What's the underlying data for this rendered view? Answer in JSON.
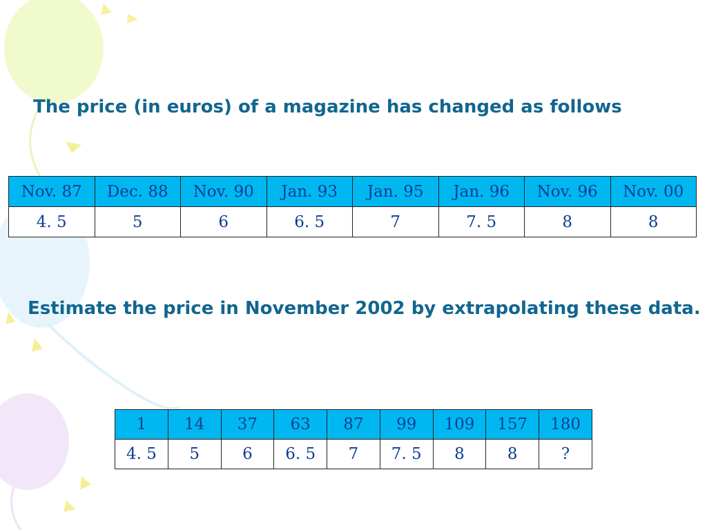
{
  "heading": "The price (in euros) of a magazine has changed as follows",
  "question": "Estimate the price in November 2002 by extrapolating these data.",
  "table_dates": {
    "dates": [
      "Nov.  87",
      "Dec.  88",
      "Nov.  90",
      "Jan.  93",
      "Jan.  95",
      "Jan.  96",
      "Nov.  96",
      "Nov.  00"
    ],
    "prices": [
      "4. 5",
      "5",
      "6",
      "6. 5",
      "7",
      "7. 5",
      "8",
      "8"
    ]
  },
  "table_days": {
    "x": [
      "1",
      "14",
      "37",
      "63",
      "87",
      "99",
      "109",
      "157",
      "180"
    ],
    "prices": [
      "4. 5",
      "5",
      "6",
      "6. 5",
      "7",
      "7. 5",
      "8",
      "8",
      "?"
    ]
  },
  "colors": {
    "heading_text": "#11668f",
    "header_cell_bg": "#00b7f2",
    "cell_text": "#0d3f8f"
  }
}
